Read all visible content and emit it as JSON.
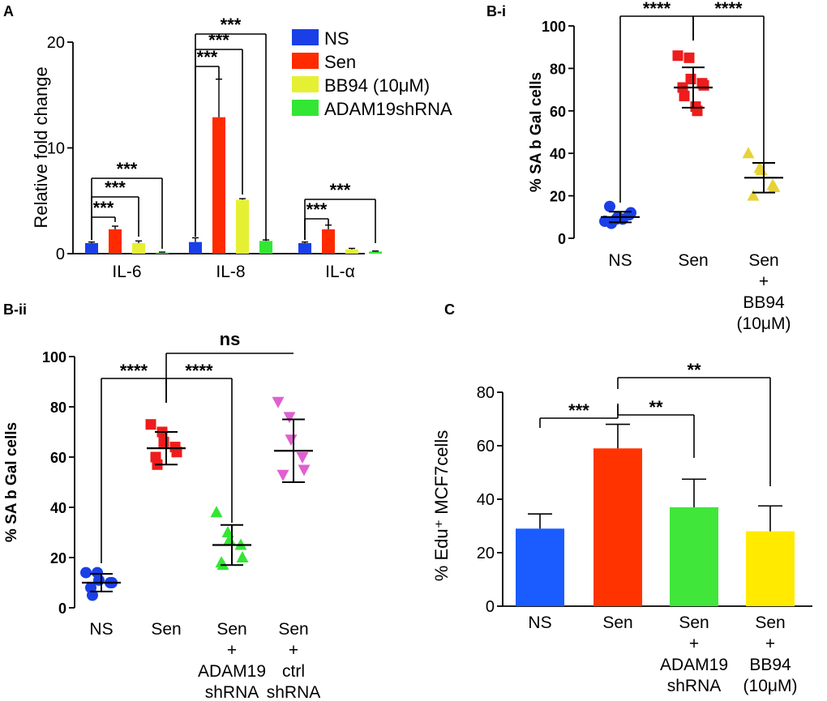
{
  "panels": {
    "A": {
      "letter": "A",
      "chart_data": {
        "type": "bar",
        "ylabel": "Relative fold change",
        "ylim": [
          0,
          20
        ],
        "yticks": [
          0,
          10,
          20
        ],
        "categories": [
          "IL-6",
          "IL-8",
          "IL-α"
        ],
        "series": [
          {
            "name": "NS",
            "color": "#1a3fe6",
            "values": [
              1.0,
              1.1,
              1.0
            ],
            "errors": [
              0.1,
              0.4,
              0.1
            ]
          },
          {
            "name": "Sen",
            "color": "#ff2a00",
            "values": [
              2.3,
              12.9,
              2.3
            ],
            "errors": [
              0.3,
              3.6,
              0.4
            ]
          },
          {
            "name": "BB94 (10μM)",
            "color": "#e6f033",
            "values": [
              1.0,
              5.1,
              0.4
            ],
            "errors": [
              0.2,
              0.1,
              0.1
            ]
          },
          {
            "name": "ADAM19shRNA",
            "color": "#33e633",
            "values": [
              0.1,
              1.2,
              0.2
            ],
            "errors": [
              0.05,
              0.1,
              0.05
            ]
          }
        ],
        "significance": [
          {
            "group": 0,
            "from": 0,
            "to": 1,
            "label": "***"
          },
          {
            "group": 0,
            "from": 0,
            "to": 2,
            "label": "***"
          },
          {
            "group": 0,
            "from": 0,
            "to": 3,
            "label": "***"
          },
          {
            "group": 1,
            "from": 0,
            "to": 1,
            "label": "***"
          },
          {
            "group": 1,
            "from": 0,
            "to": 2,
            "label": "***"
          },
          {
            "group": 1,
            "from": 0,
            "to": 3,
            "label": "***"
          },
          {
            "group": 2,
            "from": 0,
            "to": 1,
            "label": "***"
          },
          {
            "group": 2,
            "from": 0,
            "to": 3,
            "label": "***"
          }
        ]
      }
    },
    "Bi": {
      "letter": "B-i",
      "chart_data": {
        "type": "scatter",
        "ylabel": "% SA b Gal cells",
        "ylim": [
          0,
          100
        ],
        "yticks": [
          0,
          20,
          40,
          60,
          80,
          100
        ],
        "categories": [
          [
            "NS"
          ],
          [
            "Sen"
          ],
          [
            "Sen",
            "+",
            "BB94",
            "(10μM)"
          ]
        ],
        "groups": [
          {
            "color": "#1a3fe6",
            "marker": "circle",
            "mean": 10,
            "sd": 2.5,
            "points": [
              8,
              9,
              10,
              11,
              12,
              15,
              7,
              9
            ]
          },
          {
            "color": "#ee1c1c",
            "marker": "square",
            "mean": 71,
            "sd": 9.5,
            "points": [
              86,
              85,
              75,
              73,
              72,
              71,
              67,
              62,
              60
            ]
          },
          {
            "color": "#e6d23a",
            "marker": "triangle",
            "mean": 28.5,
            "sd": 7,
            "points": [
              40,
              33,
              32,
              25,
              24,
              20
            ]
          }
        ],
        "significance": [
          {
            "from": 0,
            "to": 1,
            "label": "****"
          },
          {
            "from": 1,
            "to": 2,
            "label": "****"
          }
        ]
      }
    },
    "Bii": {
      "letter": "B-ii",
      "chart_data": {
        "type": "scatter",
        "ylabel": "% SA b Gal cells",
        "ylim": [
          0,
          100
        ],
        "yticks": [
          0,
          20,
          40,
          60,
          80,
          100
        ],
        "categories": [
          [
            "NS"
          ],
          [
            "Sen"
          ],
          [
            "Sen",
            "+",
            "ADAM19",
            "shRNA"
          ],
          [
            "Sen",
            "+",
            "ctrl",
            "shRNA"
          ]
        ],
        "groups": [
          {
            "color": "#1a3fe6",
            "marker": "circle",
            "mean": 10,
            "sd": 3.5,
            "points": [
              14,
              14,
              11,
              10,
              10,
              8,
              5
            ]
          },
          {
            "color": "#ee1c1c",
            "marker": "square",
            "mean": 63.5,
            "sd": 6.5,
            "points": [
              73,
              70,
              66,
              64,
              62,
              60,
              57
            ]
          },
          {
            "color": "#33e633",
            "marker": "triangle",
            "mean": 25,
            "sd": 8,
            "points": [
              38,
              30,
              27,
              25,
              20,
              18,
              17
            ]
          },
          {
            "color": "#e060d0",
            "marker": "triangle-down",
            "mean": 62.5,
            "sd": 12.5,
            "points": [
              82,
              76,
              67,
              60,
              55,
              53
            ]
          }
        ],
        "significance": [
          {
            "from": 0,
            "to": 1,
            "label": "****"
          },
          {
            "from": 1,
            "to": 2,
            "label": "****"
          },
          {
            "from": 1,
            "to": 3,
            "label": "ns"
          }
        ]
      }
    },
    "C": {
      "letter": "C",
      "chart_data": {
        "type": "bar",
        "ylabel": "% Edu⁺ MCF7cells",
        "ylim": [
          0,
          80
        ],
        "yticks": [
          0,
          20,
          40,
          60,
          80
        ],
        "categories": [
          [
            "NS"
          ],
          [
            "Sen"
          ],
          [
            "Sen",
            "+",
            "ADAM19",
            "shRNA"
          ],
          [
            "Sen",
            "+",
            "BB94",
            "(10μM)"
          ]
        ],
        "values": [
          29,
          59,
          37,
          28
        ],
        "errors": [
          5.5,
          9,
          10.5,
          9.5
        ],
        "colors": [
          "#1a5cff",
          "#ff3300",
          "#40e63a",
          "#ffea00"
        ],
        "significance": [
          {
            "from": 0,
            "to": 1,
            "label": "***"
          },
          {
            "from": 1,
            "to": 2,
            "label": "**"
          },
          {
            "from": 1,
            "to": 3,
            "label": "**"
          }
        ]
      }
    }
  }
}
